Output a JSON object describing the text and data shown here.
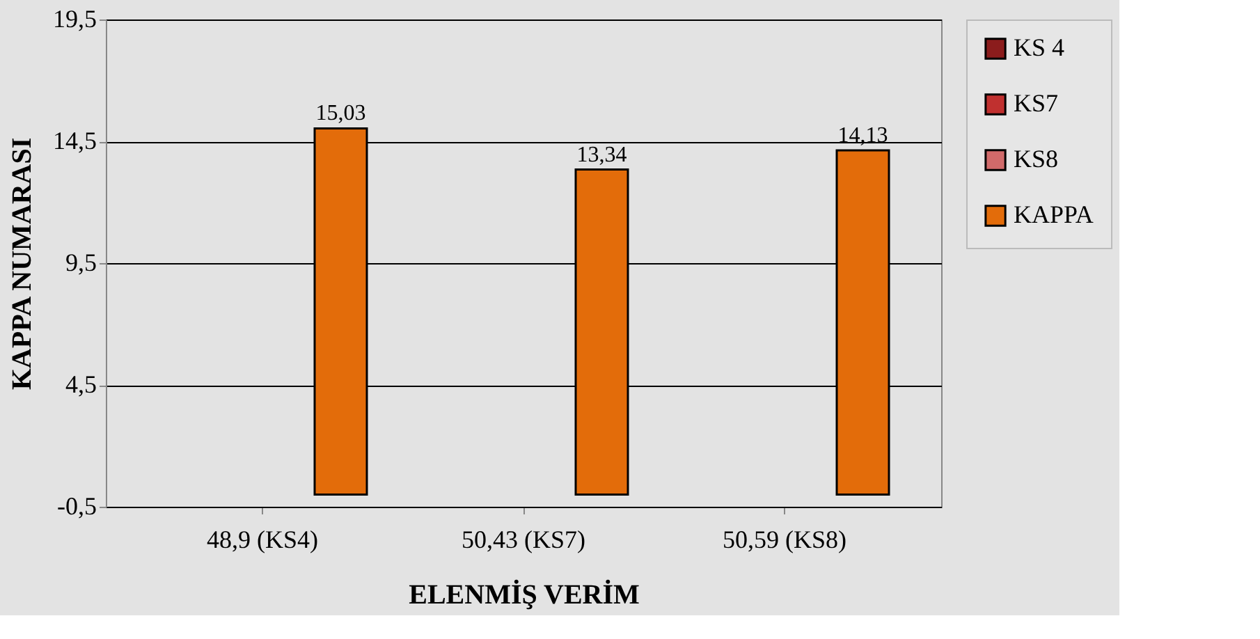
{
  "chart_data": {
    "type": "bar",
    "xlabel": "ELENMİŞ VERİM",
    "ylabel": "KAPPA NUMARASI",
    "categories": [
      "48,9 (KS4)",
      "50,43 (KS7)",
      "50,59 (KS8)"
    ],
    "series": [
      {
        "name": "KS 4",
        "color": "#8b1c1c",
        "values": [
          null,
          null,
          null
        ]
      },
      {
        "name": "KS7",
        "color": "#c0302f",
        "values": [
          null,
          null,
          null
        ]
      },
      {
        "name": "KS8",
        "color": "#d16a6a",
        "values": [
          null,
          null,
          null
        ]
      },
      {
        "name": "KAPPA",
        "color": "#e36c0a",
        "values": [
          15.03,
          13.34,
          14.13
        ],
        "value_labels": [
          "15,03",
          "13,34",
          "14,13"
        ]
      }
    ],
    "ylim": [
      -0.5,
      19.5
    ],
    "yticks": [
      {
        "value": -0.5,
        "label": "-0,5"
      },
      {
        "value": 4.5,
        "label": "4,5"
      },
      {
        "value": 9.5,
        "label": "9,5"
      },
      {
        "value": 14.5,
        "label": "14,5"
      },
      {
        "value": 19.5,
        "label": "19,5"
      }
    ],
    "grid": "y",
    "legend": "right"
  }
}
